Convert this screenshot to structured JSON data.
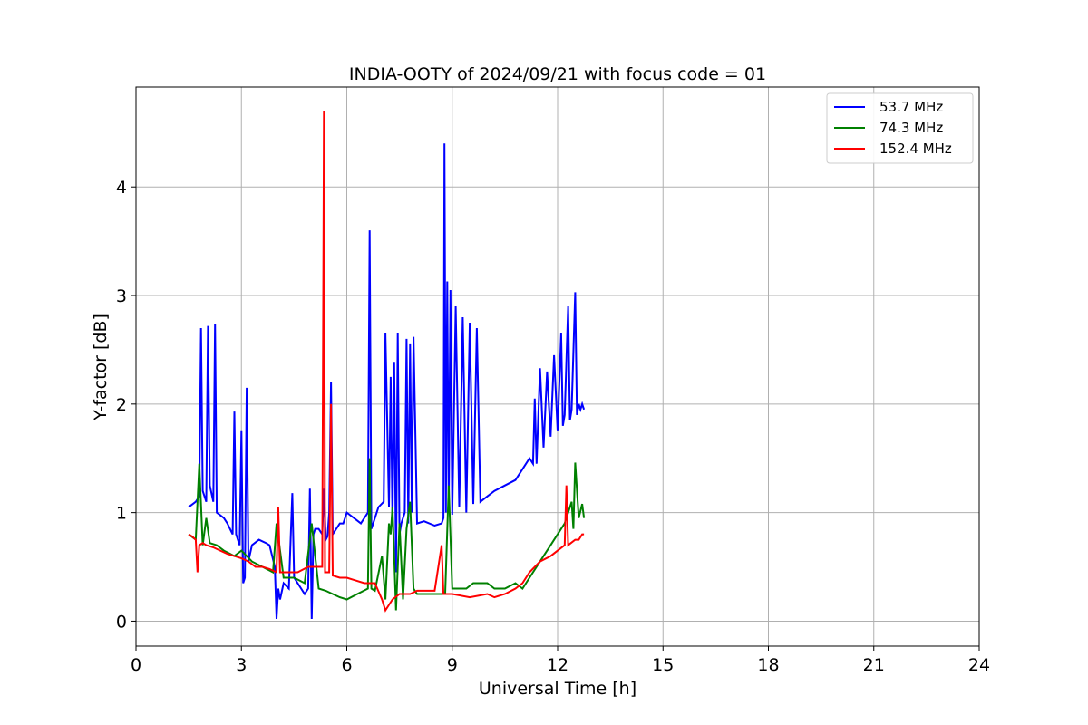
{
  "chart_data": {
    "type": "line",
    "title": "INDIA-OOTY of 2024/09/21 with focus code = 01",
    "xlabel": "Universal Time [h]",
    "ylabel": "Y-factor [dB]",
    "xlim": [
      0,
      24
    ],
    "ylim": [
      -0.23,
      4.92
    ],
    "xticks": [
      0,
      3,
      6,
      9,
      12,
      15,
      18,
      21,
      24
    ],
    "xtick_labels": [
      "0",
      "3",
      "6",
      "9",
      "12",
      "15",
      "18",
      "21",
      "24"
    ],
    "yticks": [
      0,
      1,
      2,
      3,
      4
    ],
    "ytick_labels": [
      "0",
      "1",
      "2",
      "3",
      "4"
    ],
    "grid": true,
    "legend_position": "top-right",
    "series": [
      {
        "name": "  53.7 MHz",
        "color": "#0000ff",
        "x": [
          1.5,
          1.7,
          1.8,
          1.85,
          1.9,
          2.0,
          2.05,
          2.1,
          2.2,
          2.25,
          2.3,
          2.5,
          2.6,
          2.75,
          2.8,
          2.85,
          2.95,
          3.0,
          3.05,
          3.1,
          3.15,
          3.2,
          3.3,
          3.5,
          3.7,
          3.8,
          3.95,
          4.0,
          4.05,
          4.1,
          4.2,
          4.35,
          4.45,
          4.5,
          4.6,
          4.8,
          4.9,
          4.95,
          5.0,
          5.05,
          5.1,
          5.2,
          5.3,
          5.35,
          5.4,
          5.45,
          5.5,
          5.55,
          5.6,
          5.7,
          5.8,
          5.9,
          6.0,
          6.2,
          6.4,
          6.6,
          6.65,
          6.7,
          6.75,
          6.9,
          7.05,
          7.1,
          7.2,
          7.25,
          7.3,
          7.35,
          7.4,
          7.45,
          7.5,
          7.55,
          7.65,
          7.7,
          7.75,
          7.8,
          7.85,
          7.9,
          8.0,
          8.2,
          8.5,
          8.7,
          8.75,
          8.78,
          8.82,
          8.86,
          8.9,
          8.95,
          9.0,
          9.1,
          9.2,
          9.3,
          9.4,
          9.5,
          9.6,
          9.7,
          9.8,
          10.0,
          10.2,
          10.5,
          10.8,
          11.0,
          11.2,
          11.3,
          11.35,
          11.4,
          11.5,
          11.6,
          11.7,
          11.8,
          11.9,
          12.0,
          12.1,
          12.15,
          12.2,
          12.3,
          12.35,
          12.4,
          12.5,
          12.55,
          12.6,
          12.65,
          12.7,
          12.75
        ],
        "y": [
          1.05,
          1.1,
          1.15,
          2.7,
          1.2,
          1.1,
          2.72,
          1.25,
          1.1,
          2.74,
          1.0,
          0.95,
          0.9,
          0.8,
          1.93,
          0.8,
          0.7,
          1.75,
          0.35,
          0.4,
          2.15,
          0.55,
          0.7,
          0.75,
          0.72,
          0.7,
          0.5,
          0.02,
          0.3,
          0.2,
          0.35,
          0.3,
          1.18,
          0.4,
          0.35,
          0.25,
          0.3,
          1.22,
          0.02,
          0.8,
          0.85,
          0.85,
          0.8,
          1.22,
          0.75,
          0.78,
          1.0,
          2.2,
          0.8,
          0.85,
          0.9,
          0.9,
          1.0,
          0.95,
          0.9,
          1.0,
          3.6,
          0.85,
          0.9,
          1.05,
          1.1,
          2.65,
          1.05,
          2.25,
          0.9,
          2.38,
          0.45,
          2.65,
          0.8,
          0.9,
          1.0,
          2.6,
          0.9,
          2.55,
          1.0,
          2.62,
          0.9,
          0.92,
          0.88,
          0.9,
          0.95,
          4.4,
          1.0,
          3.13,
          1.0,
          3.05,
          0.98,
          2.9,
          1.05,
          2.8,
          1.0,
          2.75,
          1.08,
          2.7,
          1.1,
          1.15,
          1.2,
          1.25,
          1.3,
          1.4,
          1.5,
          1.45,
          2.05,
          1.45,
          2.33,
          1.6,
          2.3,
          1.7,
          2.45,
          1.75,
          2.65,
          1.8,
          1.9,
          2.9,
          1.85,
          1.95,
          3.03,
          1.9,
          2.0,
          1.95,
          2.0,
          1.95
        ]
      },
      {
        "name": "  74.3 MHz",
        "color": "#008000",
        "x": [
          1.5,
          1.7,
          1.8,
          1.9,
          2.0,
          2.1,
          2.3,
          2.5,
          2.8,
          3.0,
          3.3,
          3.6,
          3.9,
          4.0,
          4.2,
          4.5,
          4.8,
          5.0,
          5.2,
          5.4,
          5.6,
          5.8,
          6.0,
          6.3,
          6.6,
          6.65,
          6.7,
          6.8,
          7.0,
          7.1,
          7.2,
          7.25,
          7.3,
          7.4,
          7.5,
          7.6,
          7.7,
          7.8,
          7.9,
          8.0,
          8.2,
          8.5,
          8.8,
          8.9,
          9.0,
          9.2,
          9.4,
          9.6,
          9.8,
          10.0,
          10.2,
          10.5,
          10.8,
          11.0,
          11.2,
          11.4,
          11.6,
          11.8,
          12.0,
          12.2,
          12.4,
          12.45,
          12.5,
          12.6,
          12.7,
          12.75
        ],
        "y": [
          0.8,
          0.75,
          1.45,
          0.7,
          0.95,
          0.72,
          0.7,
          0.65,
          0.6,
          0.65,
          0.55,
          0.5,
          0.45,
          0.9,
          0.4,
          0.4,
          0.35,
          0.9,
          0.3,
          0.28,
          0.25,
          0.22,
          0.2,
          0.25,
          0.3,
          1.5,
          0.3,
          0.28,
          0.6,
          0.2,
          0.9,
          0.8,
          1.05,
          0.1,
          0.9,
          0.2,
          0.85,
          1.1,
          0.3,
          0.25,
          0.25,
          0.25,
          0.25,
          1.25,
          0.3,
          0.3,
          0.3,
          0.35,
          0.35,
          0.35,
          0.3,
          0.3,
          0.35,
          0.3,
          0.4,
          0.5,
          0.6,
          0.7,
          0.8,
          0.9,
          1.1,
          0.85,
          1.46,
          0.95,
          1.08,
          0.95
        ]
      },
      {
        "name": "152.4 MHz",
        "color": "#ff0000",
        "x": [
          1.5,
          1.6,
          1.7,
          1.75,
          1.8,
          1.9,
          2.0,
          2.2,
          2.4,
          2.6,
          2.8,
          3.0,
          3.2,
          3.4,
          3.6,
          3.8,
          4.0,
          4.05,
          4.1,
          4.3,
          4.6,
          4.9,
          5.1,
          5.3,
          5.35,
          5.38,
          5.42,
          5.5,
          5.55,
          5.6,
          5.8,
          6.0,
          6.2,
          6.5,
          6.8,
          7.0,
          7.1,
          7.2,
          7.3,
          7.5,
          7.8,
          8.0,
          8.5,
          8.7,
          8.75,
          8.8,
          9.0,
          9.5,
          10.0,
          10.2,
          10.5,
          10.8,
          11.0,
          11.2,
          11.5,
          11.8,
          12.0,
          12.2,
          12.25,
          12.3,
          12.5,
          12.6,
          12.7,
          12.75
        ],
        "y": [
          0.8,
          0.78,
          0.75,
          0.45,
          0.7,
          0.72,
          0.7,
          0.68,
          0.65,
          0.62,
          0.6,
          0.58,
          0.55,
          0.5,
          0.5,
          0.48,
          0.45,
          1.05,
          0.45,
          0.45,
          0.45,
          0.5,
          0.5,
          0.5,
          4.7,
          0.45,
          0.45,
          0.45,
          2.0,
          0.42,
          0.4,
          0.4,
          0.38,
          0.35,
          0.35,
          0.2,
          0.1,
          0.15,
          0.2,
          0.25,
          0.25,
          0.28,
          0.28,
          0.7,
          0.25,
          0.25,
          0.25,
          0.22,
          0.25,
          0.22,
          0.25,
          0.3,
          0.35,
          0.45,
          0.55,
          0.6,
          0.65,
          0.7,
          1.25,
          0.7,
          0.75,
          0.75,
          0.8,
          0.8
        ]
      }
    ]
  }
}
